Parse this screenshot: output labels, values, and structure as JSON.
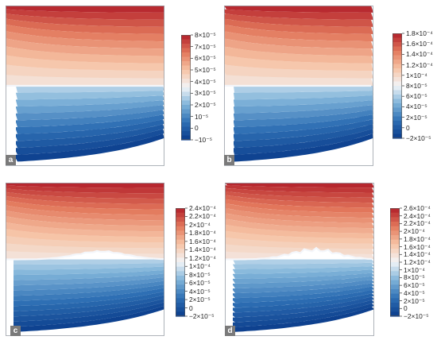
{
  "chart_data": [
    {
      "type": "heatmap",
      "panel_label": "a",
      "colormap": [
        "#0b3d8c",
        "#2e6fb4",
        "#7fb3d9",
        "#f2f5f8",
        "#f6c3a5",
        "#e2775b",
        "#b21f2a"
      ],
      "colorbar_ticks": [
        "8×10⁻⁵",
        "7×10⁻⁵",
        "6×10⁻⁵",
        "5×10⁻⁵",
        "4×10⁻⁵",
        "3×10⁻⁵",
        "2×10⁻⁵",
        "10⁻⁵",
        "0",
        "−10⁻⁵"
      ],
      "colorbar_min": -1e-05,
      "colorbar_max": 8e-05
    },
    {
      "type": "heatmap",
      "panel_label": "b",
      "colormap": [
        "#0b3d8c",
        "#2e6fb4",
        "#7fb3d9",
        "#f2f5f8",
        "#f6c3a5",
        "#e2775b",
        "#b21f2a"
      ],
      "colorbar_ticks": [
        "1.8×10⁻⁴",
        "1.6×10⁻⁴",
        "1.4×10⁻⁴",
        "1.2×10⁻⁴",
        "1×10⁻⁴",
        "8×10⁻⁵",
        "6×10⁻⁵",
        "4×10⁻⁵",
        "2×10⁻⁵",
        "0",
        "−2×10⁻⁵"
      ],
      "colorbar_min": -2e-05,
      "colorbar_max": 0.00018
    },
    {
      "type": "heatmap",
      "panel_label": "c",
      "colormap": [
        "#0b3d8c",
        "#2e6fb4",
        "#7fb3d9",
        "#f2f5f8",
        "#f6c3a5",
        "#e2775b",
        "#b21f2a"
      ],
      "colorbar_ticks": [
        "2.4×10⁻⁴",
        "2.2×10⁻⁴",
        "2×10⁻⁴",
        "1.8×10⁻⁴",
        "1.6×10⁻⁴",
        "1.4×10⁻⁴",
        "1.2×10⁻⁴",
        "1×10⁻⁴",
        "8×10⁻⁵",
        "6×10⁻⁵",
        "4×10⁻⁵",
        "2×10⁻⁵",
        "0",
        "−2×10⁻⁵"
      ],
      "colorbar_min": -2e-05,
      "colorbar_max": 0.00024
    },
    {
      "type": "heatmap",
      "panel_label": "d",
      "colormap": [
        "#0b3d8c",
        "#2e6fb4",
        "#7fb3d9",
        "#f2f5f8",
        "#f6c3a5",
        "#e2775b",
        "#b21f2a"
      ],
      "colorbar_ticks": [
        "2.6×10⁻⁴",
        "2.4×10⁻⁴",
        "2.2×10⁻⁴",
        "2×10⁻⁴",
        "1.8×10⁻⁴",
        "1.6×10⁻⁴",
        "1.4×10⁻⁴",
        "1.2×10⁻⁴",
        "1×10⁻⁴",
        "8×10⁻⁵",
        "6×10⁻⁵",
        "4×10⁻⁵",
        "2×10⁻⁵",
        "0",
        "−2×10⁻⁵"
      ],
      "colorbar_min": -2e-05,
      "colorbar_max": 0.00026
    }
  ]
}
